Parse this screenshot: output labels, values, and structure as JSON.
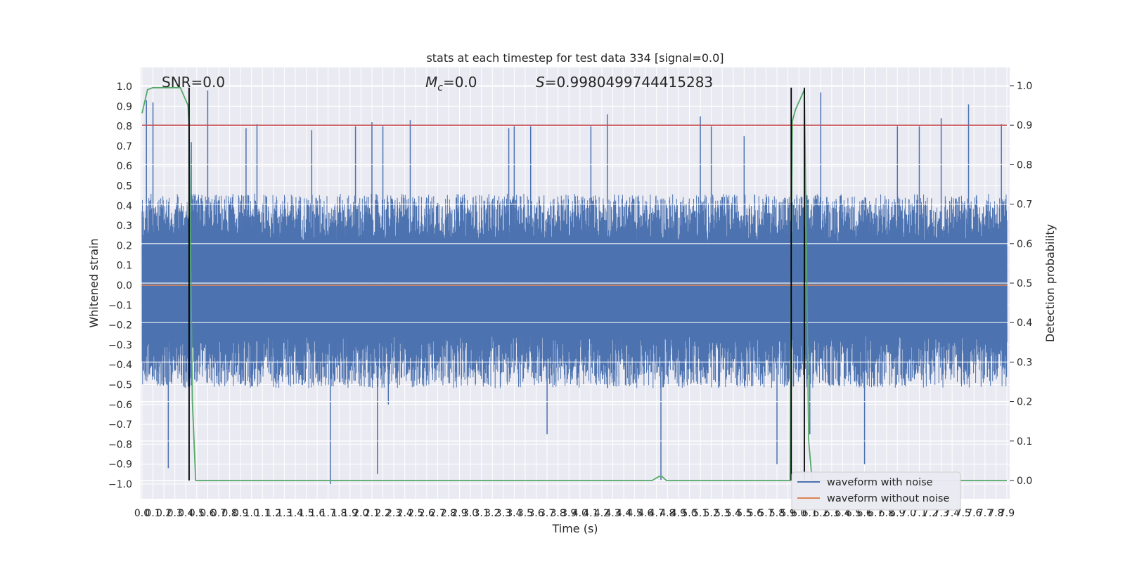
{
  "chart_data": {
    "type": "line",
    "title": "stats at each timestep for test data 334 [signal=0.0]",
    "xlabel": "Time (s)",
    "ylabel": "Whitened strain",
    "ylabel_right": "Detection probability",
    "xlim": [
      0.0,
      7.9
    ],
    "ylim": [
      -1.0,
      1.0
    ],
    "ylim_right": [
      0.0,
      1.0
    ],
    "x_ticks": [
      0.0,
      0.1,
      0.2,
      0.3,
      0.4,
      0.5,
      0.6,
      0.7,
      0.8,
      0.9,
      1.0,
      1.1,
      1.2,
      1.3,
      1.4,
      1.5,
      1.6,
      1.7,
      1.8,
      1.9,
      2.0,
      2.1,
      2.2,
      2.3,
      2.4,
      2.5,
      2.6,
      2.7,
      2.8,
      2.9,
      3.0,
      3.1,
      3.2,
      3.3,
      3.4,
      3.5,
      3.6,
      3.7,
      3.8,
      3.9,
      4.0,
      4.1,
      4.2,
      4.3,
      4.4,
      4.5,
      4.6,
      4.7,
      4.8,
      4.9,
      5.0,
      5.1,
      5.2,
      5.3,
      5.4,
      5.5,
      5.6,
      5.7,
      5.8,
      5.9,
      6.0,
      6.1,
      6.2,
      6.3,
      6.4,
      6.5,
      6.6,
      6.7,
      6.8,
      6.9,
      7.0,
      7.1,
      7.2,
      7.3,
      7.4,
      7.5,
      7.6,
      7.7,
      7.8,
      7.9
    ],
    "y_ticks": [
      1.0,
      0.9,
      0.8,
      0.7,
      0.6,
      0.5,
      0.4,
      0.3,
      0.2,
      0.1,
      0.0,
      -0.1,
      -0.2,
      -0.3,
      -0.4,
      -0.5,
      -0.6,
      -0.7,
      -0.8,
      -0.9,
      -1.0
    ],
    "y_ticks_right": [
      1.0,
      0.9,
      0.8,
      0.7,
      0.6,
      0.5,
      0.4,
      0.3,
      0.2,
      0.1,
      0.0
    ],
    "annotations": {
      "snr": "SNR=0.0",
      "mc_symbol": "M",
      "mc_sub": "c",
      "mc_value": "=0.0",
      "s_symbol": "S",
      "s_value": "=0.9980499744415283"
    },
    "legend": {
      "placement": "lower-right",
      "entries": [
        "waveform with noise",
        "waveform without noise"
      ]
    },
    "threshold_right": 0.9,
    "vertical_markers": [
      0.43,
      5.93,
      6.05
    ],
    "series": [
      {
        "name": "waveform with noise",
        "color": "#4c72b0",
        "style": "dense noise",
        "envelope": {
          "typical_upper": 0.4,
          "typical_lower": -0.45
        },
        "spikes": [
          [
            0.04,
            0.93
          ],
          [
            0.1,
            0.92
          ],
          [
            0.24,
            -0.92
          ],
          [
            0.45,
            0.72
          ],
          [
            0.6,
            0.98
          ],
          [
            0.95,
            0.79
          ],
          [
            1.05,
            0.81
          ],
          [
            1.55,
            0.78
          ],
          [
            1.72,
            -1.0
          ],
          [
            1.95,
            0.8
          ],
          [
            2.1,
            0.82
          ],
          [
            2.15,
            -0.95
          ],
          [
            2.2,
            0.8
          ],
          [
            2.25,
            -0.6
          ],
          [
            2.45,
            0.83
          ],
          [
            3.35,
            0.79
          ],
          [
            3.4,
            0.8
          ],
          [
            3.55,
            0.8
          ],
          [
            3.7,
            -0.75
          ],
          [
            4.1,
            0.8
          ],
          [
            4.25,
            0.86
          ],
          [
            4.74,
            -0.98
          ],
          [
            5.1,
            0.85
          ],
          [
            5.2,
            0.8
          ],
          [
            5.5,
            0.75
          ],
          [
            5.8,
            -0.9
          ],
          [
            6.1,
            -0.75
          ],
          [
            6.2,
            0.97
          ],
          [
            6.6,
            -0.9
          ],
          [
            6.9,
            0.8
          ],
          [
            7.1,
            0.8
          ],
          [
            7.3,
            0.84
          ],
          [
            7.55,
            0.91
          ],
          [
            7.85,
            0.81
          ]
        ]
      },
      {
        "name": "waveform without noise",
        "color": "#dd8452",
        "x": [
          0.0,
          7.9
        ],
        "y": [
          0.0,
          0.0
        ]
      },
      {
        "axis": "right",
        "color": "#55a868",
        "x": [
          0.0,
          0.05,
          0.1,
          0.2,
          0.35,
          0.42,
          0.43,
          0.46,
          0.49,
          4.6,
          4.66,
          4.72,
          4.75,
          4.79,
          5.92,
          5.93,
          5.94,
          5.97,
          6.05,
          6.09,
          6.12,
          7.9
        ],
        "y": [
          0.93,
          0.99,
          0.995,
          0.995,
          0.995,
          0.95,
          0.9,
          0.2,
          0.0,
          0.0,
          0.0,
          0.01,
          0.01,
          0.0,
          0.0,
          0.5,
          0.91,
          0.94,
          0.99,
          0.1,
          0.0,
          0.0
        ]
      },
      {
        "axis": "right",
        "color": "#c44e52",
        "x": [
          0.0,
          7.9
        ],
        "y": [
          0.9,
          0.9
        ]
      }
    ]
  }
}
